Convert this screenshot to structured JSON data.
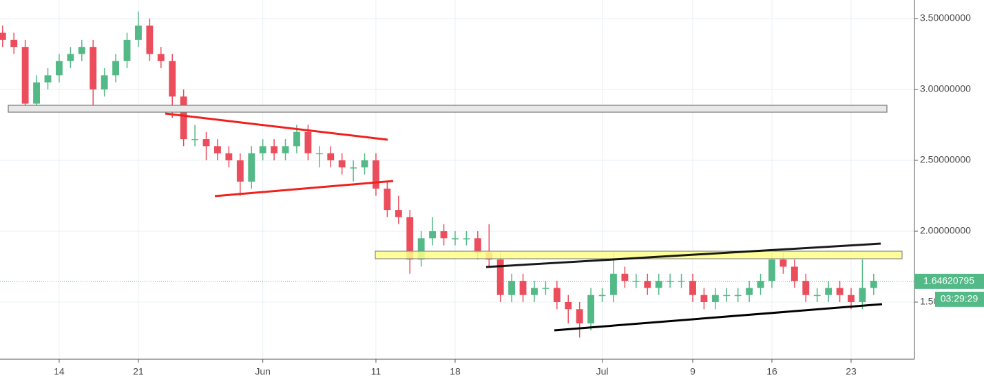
{
  "chart_data": {
    "type": "candlestick",
    "x": [
      9,
      10,
      11,
      12,
      13,
      14,
      15,
      16,
      17,
      18,
      19,
      20,
      21,
      22,
      23,
      24,
      25,
      26,
      27,
      28,
      29,
      30,
      31,
      32,
      33,
      34,
      35,
      36,
      37,
      38,
      39,
      40,
      41,
      42,
      43,
      44,
      45,
      46,
      47,
      48,
      49,
      50,
      51,
      52,
      53,
      54,
      55,
      56,
      57,
      58,
      59,
      60,
      61,
      62,
      63,
      64,
      65,
      66,
      67,
      68,
      69,
      70,
      71,
      72,
      73,
      74,
      75,
      76,
      77,
      78,
      79,
      80,
      81,
      82,
      83,
      84,
      85,
      86
    ],
    "open": [
      3.4,
      3.35,
      3.3,
      2.9,
      3.05,
      3.1,
      3.2,
      3.25,
      3.3,
      3.0,
      3.1,
      3.2,
      3.35,
      3.45,
      3.25,
      3.2,
      2.95,
      2.65,
      2.65,
      2.6,
      2.55,
      2.5,
      2.35,
      2.55,
      2.6,
      2.55,
      2.6,
      2.7,
      2.55,
      2.55,
      2.5,
      2.45,
      2.45,
      2.5,
      2.3,
      2.15,
      2.1,
      1.8,
      1.95,
      2.0,
      1.95,
      1.95,
      1.95,
      1.85,
      1.8,
      1.55,
      1.65,
      1.55,
      1.6,
      1.6,
      1.5,
      1.45,
      1.35,
      1.55,
      1.55,
      1.7,
      1.65,
      1.65,
      1.6,
      1.65,
      1.65,
      1.65,
      1.55,
      1.5,
      1.55,
      1.55,
      1.55,
      1.6,
      1.65,
      1.8,
      1.75,
      1.65,
      1.55,
      1.55,
      1.6,
      1.55,
      1.5,
      1.6
    ],
    "high": [
      3.45,
      3.4,
      3.35,
      3.1,
      3.15,
      3.25,
      3.3,
      3.35,
      3.35,
      3.15,
      3.25,
      3.4,
      3.55,
      3.5,
      3.3,
      3.25,
      3.0,
      2.75,
      2.7,
      2.65,
      2.6,
      2.55,
      2.6,
      2.65,
      2.65,
      2.65,
      2.75,
      2.75,
      2.6,
      2.6,
      2.55,
      2.5,
      2.55,
      2.55,
      2.35,
      2.25,
      2.15,
      2.0,
      2.1,
      2.05,
      2.0,
      2.0,
      2.0,
      2.05,
      1.85,
      1.7,
      1.7,
      1.65,
      1.65,
      1.65,
      1.55,
      1.5,
      1.6,
      1.6,
      1.85,
      1.75,
      1.7,
      1.7,
      1.7,
      1.7,
      1.7,
      1.7,
      1.6,
      1.6,
      1.6,
      1.6,
      1.65,
      1.7,
      1.85,
      1.85,
      1.8,
      1.7,
      1.6,
      1.65,
      1.65,
      1.6,
      1.8,
      1.7
    ],
    "low": [
      3.3,
      3.25,
      2.85,
      2.85,
      3.0,
      3.05,
      3.15,
      3.2,
      2.85,
      2.95,
      3.05,
      3.15,
      3.3,
      3.2,
      3.15,
      2.8,
      2.6,
      2.6,
      2.5,
      2.5,
      2.45,
      2.25,
      2.3,
      2.5,
      2.5,
      2.5,
      2.55,
      2.5,
      2.45,
      2.45,
      2.4,
      2.35,
      2.4,
      2.25,
      2.1,
      2.05,
      1.7,
      1.75,
      1.9,
      1.9,
      1.9,
      1.9,
      1.8,
      1.75,
      1.5,
      1.5,
      1.5,
      1.5,
      1.55,
      1.45,
      1.35,
      1.25,
      1.3,
      1.5,
      1.5,
      1.6,
      1.6,
      1.55,
      1.55,
      1.6,
      1.6,
      1.5,
      1.45,
      1.45,
      1.5,
      1.5,
      1.5,
      1.55,
      1.6,
      1.7,
      1.6,
      1.5,
      1.5,
      1.5,
      1.5,
      1.45,
      1.45,
      1.55
    ],
    "close": [
      3.35,
      3.3,
      2.9,
      3.05,
      3.1,
      3.2,
      3.25,
      3.3,
      3.0,
      3.1,
      3.2,
      3.35,
      3.45,
      3.25,
      3.2,
      2.95,
      2.65,
      2.65,
      2.6,
      2.55,
      2.5,
      2.35,
      2.55,
      2.6,
      2.55,
      2.6,
      2.7,
      2.55,
      2.55,
      2.5,
      2.45,
      2.45,
      2.5,
      2.3,
      2.15,
      2.1,
      1.8,
      1.95,
      2.0,
      1.95,
      1.95,
      1.95,
      1.85,
      1.8,
      1.55,
      1.65,
      1.55,
      1.6,
      1.6,
      1.5,
      1.45,
      1.35,
      1.55,
      1.55,
      1.7,
      1.65,
      1.65,
      1.6,
      1.65,
      1.65,
      1.65,
      1.55,
      1.5,
      1.55,
      1.55,
      1.55,
      1.6,
      1.65,
      1.8,
      1.75,
      1.65,
      1.55,
      1.55,
      1.6,
      1.55,
      1.5,
      1.6,
      1.65
    ],
    "up_color": "#53b987",
    "down_color": "#eb4d5c",
    "xlim": [
      8.77,
      89.6
    ],
    "xticks": [
      14,
      21,
      {
        "value": 32,
        "label": "Jun"
      },
      {
        "value": 42,
        "label": "11"
      },
      {
        "value": 49,
        "label": "18"
      },
      {
        "value": 62,
        "label": "Jul"
      },
      {
        "value": 70,
        "label": "9"
      },
      {
        "value": 77,
        "label": "16"
      },
      {
        "value": 84,
        "label": "23"
      }
    ],
    "ylim": [
      1.097,
      3.631
    ],
    "yticks": [
      {
        "value": 1.5,
        "label": "1.50000000"
      },
      {
        "value": 2.0,
        "label": "2.00000000"
      },
      {
        "value": 2.5,
        "label": "2.50000000"
      },
      {
        "value": 3.0,
        "label": "3.00000000"
      },
      {
        "value": 3.5,
        "label": "3.50000000"
      }
    ],
    "grid": true,
    "last_price": 1.64620795,
    "countdown": "03:29:29"
  }
}
